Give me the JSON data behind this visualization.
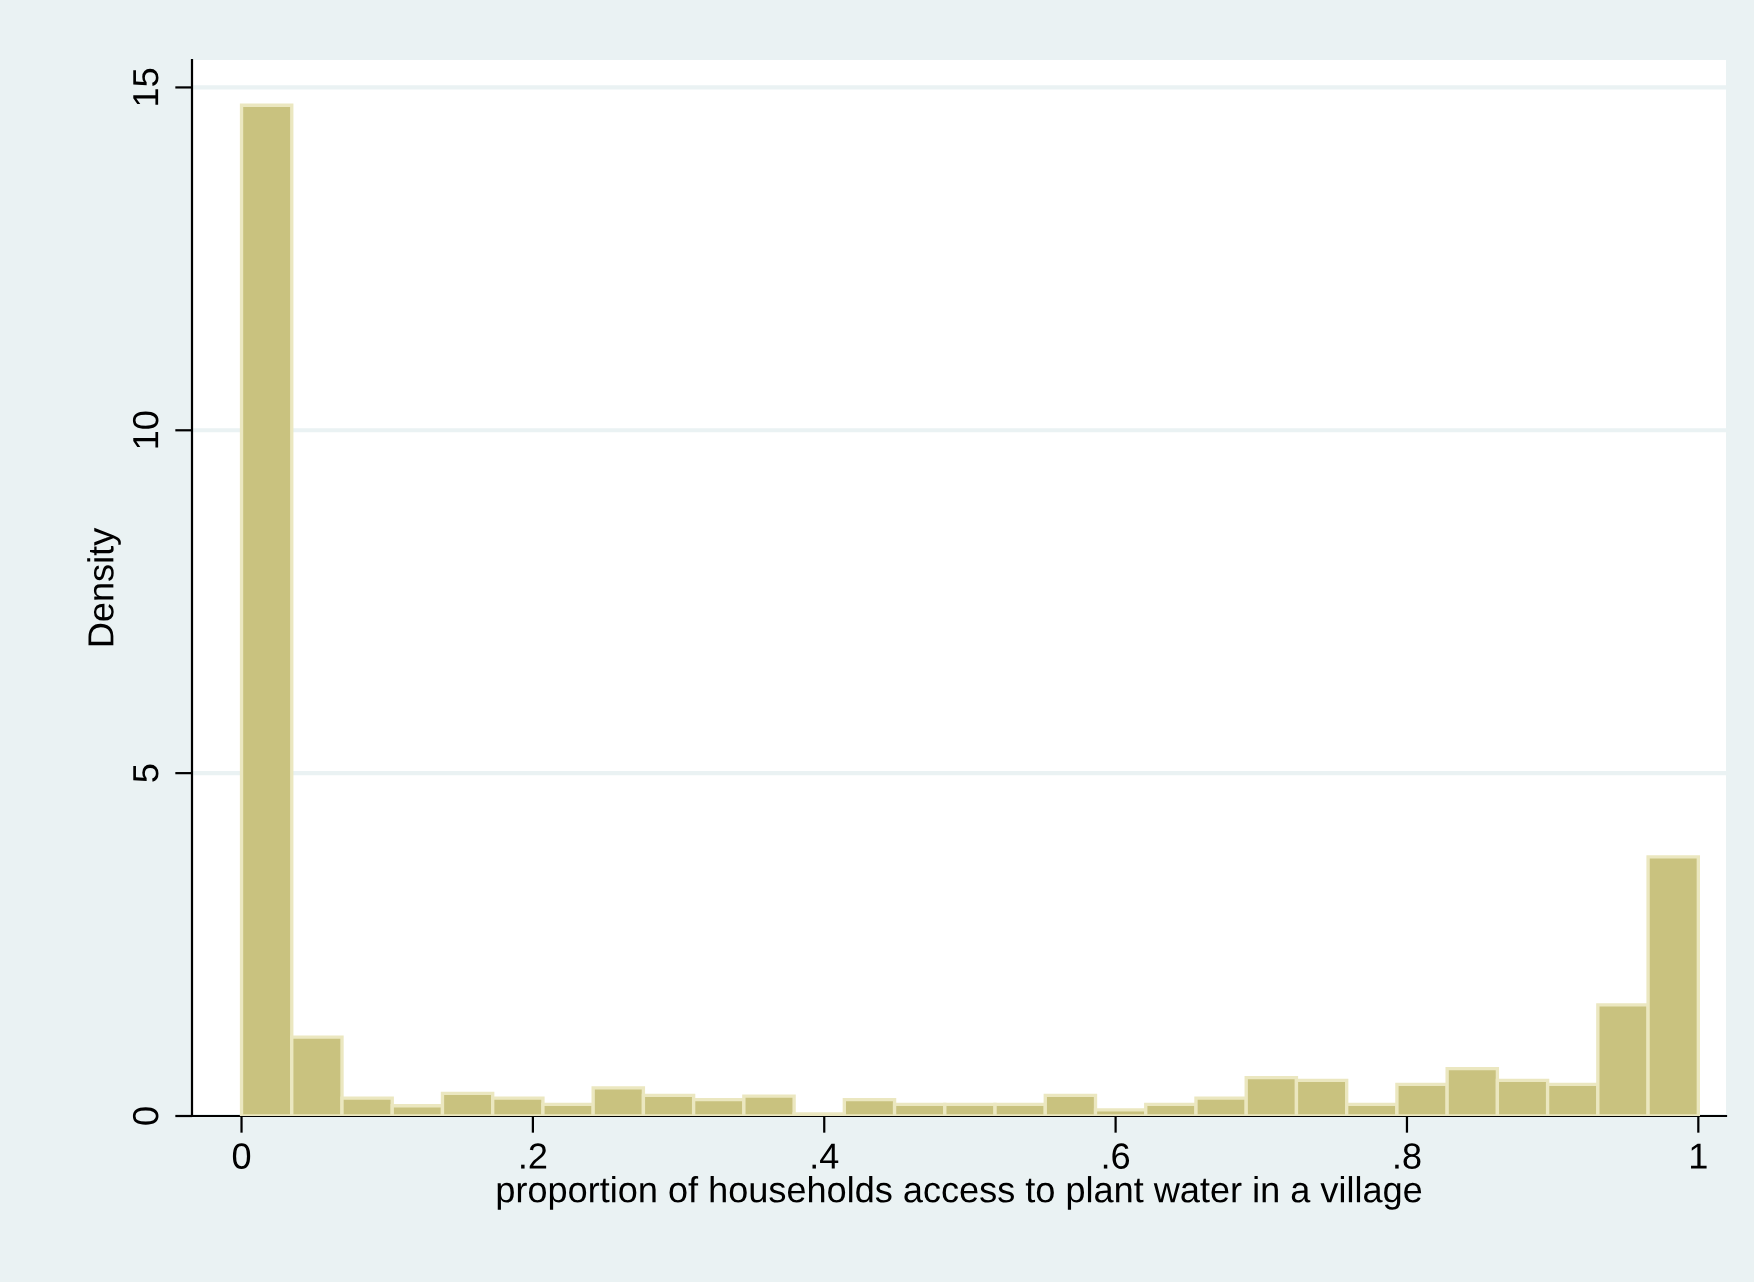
{
  "chart_data": {
    "type": "histogram",
    "xlabel": "proportion of households access to plant water in a village",
    "ylabel": "Density",
    "bins": [
      0,
      0.034483,
      0.068966,
      0.103448,
      0.137931,
      0.172414,
      0.206897,
      0.241379,
      0.275862,
      0.310345,
      0.344828,
      0.37931,
      0.413793,
      0.448276,
      0.482759,
      0.517241,
      0.551724,
      0.586207,
      0.62069,
      0.655172,
      0.689655,
      0.724138,
      0.758621,
      0.793103,
      0.827586,
      0.862069,
      0.896552,
      0.931034,
      0.965517,
      1
    ],
    "values": [
      14.74,
      1.15,
      0.26,
      0.15,
      0.33,
      0.26,
      0.17,
      0.41,
      0.3,
      0.24,
      0.29,
      0.03,
      0.24,
      0.17,
      0.17,
      0.17,
      0.3,
      0.09,
      0.17,
      0.26,
      0.56,
      0.52,
      0.17,
      0.46,
      0.69,
      0.52,
      0.46,
      1.62,
      3.78
    ],
    "color": "#c9c27f",
    "xlim": [
      -0.034,
      1.019
    ],
    "ylim": [
      0,
      15.4
    ],
    "xticks": [
      0,
      {
        "value": 0.2,
        "label": ".2"
      },
      {
        "value": 0.4,
        "label": ".4"
      },
      {
        "value": 0.6,
        "label": ".6"
      },
      {
        "value": 0.8,
        "label": ".8"
      },
      1
    ],
    "yticks": [
      0,
      5,
      10,
      15
    ],
    "grid": "y"
  }
}
